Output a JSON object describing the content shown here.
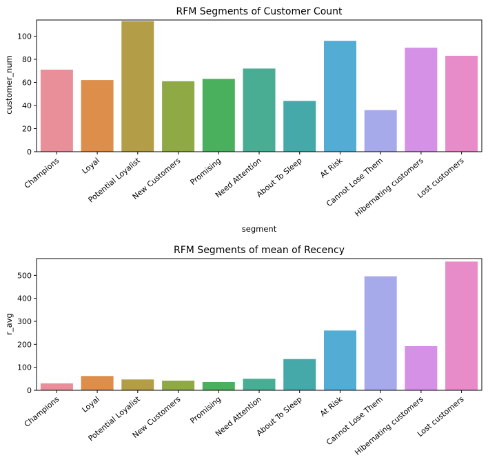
{
  "chart_data": [
    {
      "type": "bar",
      "title": "RFM Segments of Customer Count",
      "xlabel": "segment",
      "ylabel": "customer_num",
      "ylim": [
        0,
        114
      ],
      "yticks": [
        0,
        20,
        40,
        60,
        80,
        100
      ],
      "categories": [
        "Champions",
        "Loyal",
        "Potential Loyalist",
        "New Customers",
        "Promising",
        "Need Attention",
        "About To Sleep",
        "At Risk",
        "Cannot Lose Them",
        "Hibernating customers",
        "Lost customers"
      ],
      "values": [
        71,
        62,
        113,
        61,
        63,
        72,
        44,
        96,
        36,
        90,
        83
      ],
      "grid": false
    },
    {
      "type": "bar",
      "title": "RFM Segments of mean of Recency",
      "xlabel": "",
      "ylabel": "r_avg",
      "ylim": [
        0,
        573
      ],
      "yticks": [
        0,
        100,
        200,
        300,
        400,
        500
      ],
      "categories": [
        "Champions",
        "Loyal",
        "Potential Loyalist",
        "New Customers",
        "Promising",
        "Need Attention",
        "About To Sleep",
        "At Risk",
        "Cannot Lose Them",
        "Hibernating customers",
        "Lost customers"
      ],
      "values": [
        30,
        62,
        47,
        42,
        36,
        50,
        136,
        260,
        496,
        192,
        560
      ],
      "grid": false
    }
  ],
  "colors": [
    "#e98f9a",
    "#dd8e4a",
    "#b39d47",
    "#8fa944",
    "#4ab05d",
    "#48ad92",
    "#45a9aa",
    "#52acd4",
    "#a6aaeb",
    "#d591e5",
    "#e78cc9"
  ]
}
